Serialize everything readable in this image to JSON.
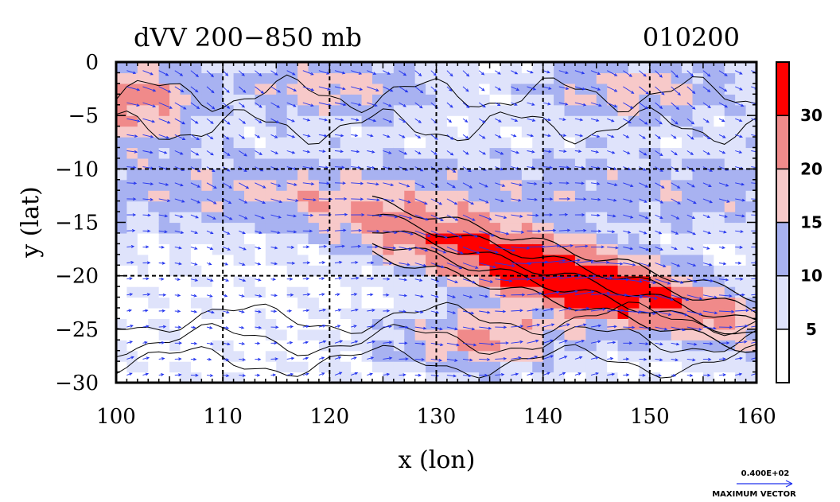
{
  "chart_data": {
    "type": "heatmap",
    "title": "dVV 200−850 mb",
    "date_label": "010200",
    "xlabel": "x (lon)",
    "ylabel": "y (lat)",
    "xlim": [
      100,
      160
    ],
    "ylim": [
      -30,
      0
    ],
    "x_ticks": [
      100,
      110,
      120,
      130,
      140,
      150,
      160
    ],
    "x_tick_labels": [
      "100",
      "110",
      "120",
      "130",
      "140",
      "150",
      "160"
    ],
    "y_ticks": [
      0,
      -5,
      -10,
      -15,
      -20,
      -25,
      -30
    ],
    "y_tick_labels": [
      "0",
      "−5",
      "−10",
      "−15",
      "−20",
      "−25",
      "−30"
    ],
    "grid_lines_x": [
      110,
      120,
      130,
      140,
      150
    ],
    "grid_lines_y": [
      -10,
      -20
    ],
    "colorbar": {
      "levels": [
        0,
        5,
        10,
        15,
        20,
        30,
        40
      ],
      "tick_values": [
        5,
        10,
        15,
        20,
        30
      ],
      "tick_labels": [
        "5",
        "10",
        "15",
        "20",
        "30"
      ],
      "colors": [
        "#ffffff",
        "#dfe3fb",
        "#a8b2f1",
        "#f7c9c9",
        "#f08a8a",
        "#ff0000"
      ]
    },
    "vector_legend": {
      "value_label": "0.400E+02",
      "caption": "MAXIMUM VECTOR"
    },
    "colors": {
      "vector": "#2233ee",
      "contour": "#000000",
      "grid": "#000000"
    }
  }
}
